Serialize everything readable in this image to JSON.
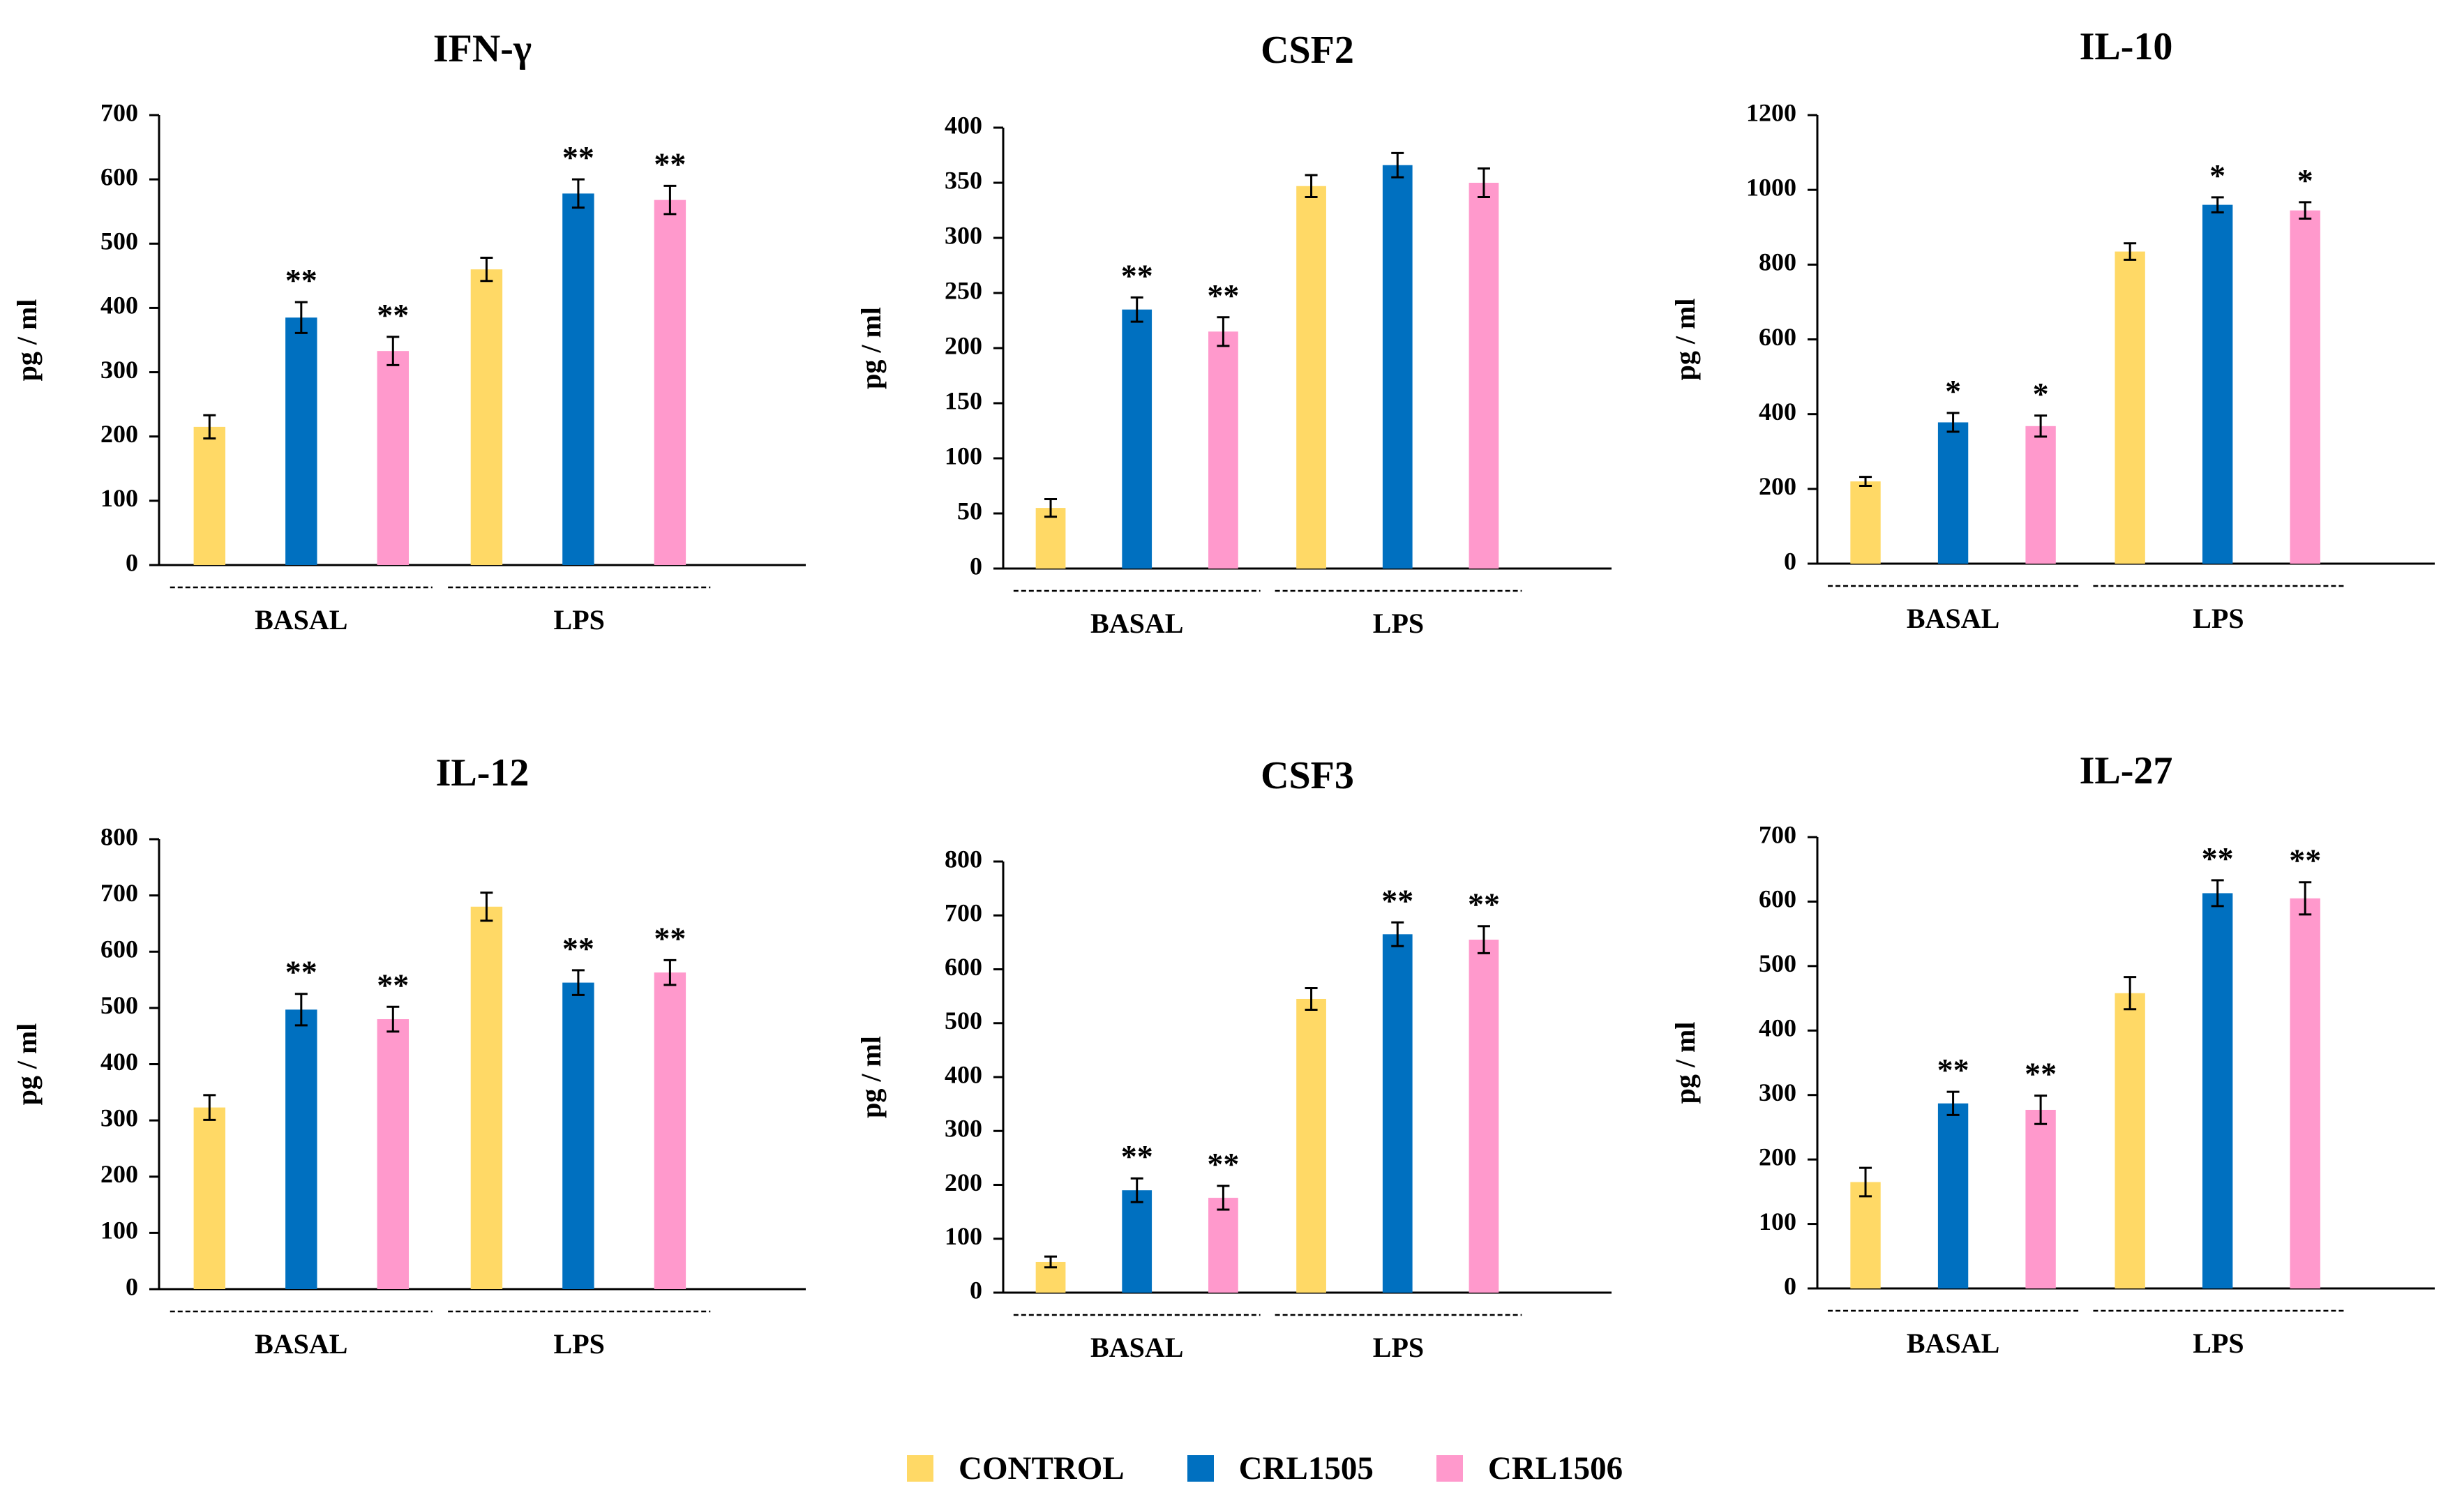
{
  "legend": [
    {
      "name": "CONTROL",
      "color": "#FFD966"
    },
    {
      "name": "CRL1505",
      "color": "#0070C0"
    },
    {
      "name": "CRL1506",
      "color": "#FF99CC"
    }
  ],
  "chart_data": [
    {
      "type": "bar",
      "title": "IFN-γ",
      "ylabel": "pg / ml",
      "ylim": [
        0,
        700
      ],
      "yticks": [
        0,
        100,
        200,
        300,
        400,
        500,
        600,
        700
      ],
      "groups": [
        "BASAL",
        "LPS"
      ],
      "series": [
        {
          "name": "CONTROL",
          "values": [
            215,
            460
          ],
          "errors": [
            18,
            18
          ],
          "marks": [
            "",
            ""
          ]
        },
        {
          "name": "CRL1505",
          "values": [
            385,
            578
          ],
          "errors": [
            24,
            22
          ],
          "marks": [
            "**",
            "**"
          ]
        },
        {
          "name": "CRL1506",
          "values": [
            333,
            568
          ],
          "errors": [
            22,
            22
          ],
          "marks": [
            "**",
            "**"
          ]
        }
      ]
    },
    {
      "type": "bar",
      "title": "CSF2",
      "ylabel": "pg / ml",
      "ylim": [
        0,
        400
      ],
      "yticks": [
        0,
        50,
        100,
        150,
        200,
        250,
        300,
        350,
        400
      ],
      "groups": [
        "BASAL",
        "LPS"
      ],
      "series": [
        {
          "name": "CONTROL",
          "values": [
            55,
            347
          ],
          "errors": [
            8,
            10
          ],
          "marks": [
            "",
            ""
          ]
        },
        {
          "name": "CRL1505",
          "values": [
            235,
            366
          ],
          "errors": [
            11,
            11
          ],
          "marks": [
            "**",
            ""
          ]
        },
        {
          "name": "CRL1506",
          "values": [
            215,
            350
          ],
          "errors": [
            13,
            13
          ],
          "marks": [
            "**",
            ""
          ]
        }
      ]
    },
    {
      "type": "bar",
      "title": "IL-10",
      "ylabel": "pg / ml",
      "ylim": [
        0,
        1200
      ],
      "yticks": [
        0,
        200,
        400,
        600,
        800,
        1000,
        1200
      ],
      "groups": [
        "BASAL",
        "LPS"
      ],
      "series": [
        {
          "name": "CONTROL",
          "values": [
            220,
            835
          ],
          "errors": [
            12,
            22
          ],
          "marks": [
            "",
            ""
          ]
        },
        {
          "name": "CRL1505",
          "values": [
            378,
            960
          ],
          "errors": [
            25,
            20
          ],
          "marks": [
            "*",
            "*"
          ]
        },
        {
          "name": "CRL1506",
          "values": [
            368,
            945
          ],
          "errors": [
            28,
            22
          ],
          "marks": [
            "*",
            "*"
          ]
        }
      ]
    },
    {
      "type": "bar",
      "title": "IL-12",
      "ylabel": "pg / ml",
      "ylim": [
        0,
        800
      ],
      "yticks": [
        0,
        100,
        200,
        300,
        400,
        500,
        600,
        700,
        800
      ],
      "groups": [
        "BASAL",
        "LPS"
      ],
      "series": [
        {
          "name": "CONTROL",
          "values": [
            323,
            680
          ],
          "errors": [
            22,
            25
          ],
          "marks": [
            "",
            ""
          ]
        },
        {
          "name": "CRL1505",
          "values": [
            497,
            545
          ],
          "errors": [
            28,
            22
          ],
          "marks": [
            "**",
            "**"
          ]
        },
        {
          "name": "CRL1506",
          "values": [
            480,
            563
          ],
          "errors": [
            22,
            22
          ],
          "marks": [
            "**",
            "**"
          ]
        }
      ]
    },
    {
      "type": "bar",
      "title": "CSF3",
      "ylabel": "pg / ml",
      "ylim": [
        0,
        800
      ],
      "yticks": [
        0,
        100,
        200,
        300,
        400,
        500,
        600,
        700,
        800
      ],
      "groups": [
        "BASAL",
        "LPS"
      ],
      "series": [
        {
          "name": "CONTROL",
          "values": [
            57,
            545
          ],
          "errors": [
            10,
            20
          ],
          "marks": [
            "",
            ""
          ]
        },
        {
          "name": "CRL1505",
          "values": [
            190,
            665
          ],
          "errors": [
            22,
            22
          ],
          "marks": [
            "**",
            "**"
          ]
        },
        {
          "name": "CRL1506",
          "values": [
            176,
            655
          ],
          "errors": [
            22,
            25
          ],
          "marks": [
            "**",
            "**"
          ]
        }
      ]
    },
    {
      "type": "bar",
      "title": "IL-27",
      "ylabel": "pg / ml",
      "ylim": [
        0,
        700
      ],
      "yticks": [
        0,
        100,
        200,
        300,
        400,
        500,
        600,
        700
      ],
      "groups": [
        "BASAL",
        "LPS"
      ],
      "series": [
        {
          "name": "CONTROL",
          "values": [
            165,
            458
          ],
          "errors": [
            22,
            25
          ],
          "marks": [
            "",
            ""
          ]
        },
        {
          "name": "CRL1505",
          "values": [
            287,
            613
          ],
          "errors": [
            18,
            20
          ],
          "marks": [
            "**",
            "**"
          ]
        },
        {
          "name": "CRL1506",
          "values": [
            277,
            605
          ],
          "errors": [
            22,
            25
          ],
          "marks": [
            "**",
            "**"
          ]
        }
      ]
    }
  ]
}
